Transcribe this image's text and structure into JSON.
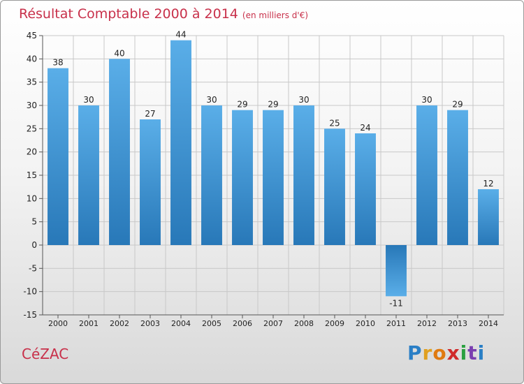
{
  "title": "Résultat Comptable 2000 à 2014",
  "subtitle": "(en milliers d'€)",
  "city": "CéZAC",
  "logo": {
    "letters": [
      "P",
      "r",
      "o",
      "x",
      "i",
      "t",
      "i"
    ],
    "colors": [
      "#2a7fc6",
      "#e0a020",
      "#e07a10",
      "#d02a2a",
      "#2aa040",
      "#7a3fb0",
      "#2a7fc6"
    ]
  },
  "colors": {
    "bar_light": "#5aaee8",
    "bar_dark": "#2878b8",
    "grid": "#c8c8c8",
    "title": "#c8304a"
  },
  "chart_data": {
    "type": "bar",
    "title": "Résultat Comptable 2000 à 2014",
    "subtitle": "(en milliers d'€)",
    "categories": [
      "2000",
      "2001",
      "2002",
      "2003",
      "2004",
      "2005",
      "2006",
      "2007",
      "2008",
      "2009",
      "2010",
      "2011",
      "2012",
      "2013",
      "2014"
    ],
    "values": [
      38,
      30,
      40,
      27,
      44,
      30,
      29,
      29,
      30,
      25,
      24,
      -11,
      30,
      29,
      12
    ],
    "data_labels": [
      "38",
      "30",
      "40",
      "27",
      "44",
      "30",
      "29",
      "29",
      "30",
      "25",
      "24",
      "-11",
      "30",
      "29",
      "12"
    ],
    "ylim": [
      -15,
      45
    ],
    "yticks": [
      -15,
      -10,
      -5,
      0,
      5,
      10,
      15,
      20,
      25,
      30,
      35,
      40,
      45
    ],
    "grid": true,
    "xlabel": "",
    "ylabel": ""
  }
}
